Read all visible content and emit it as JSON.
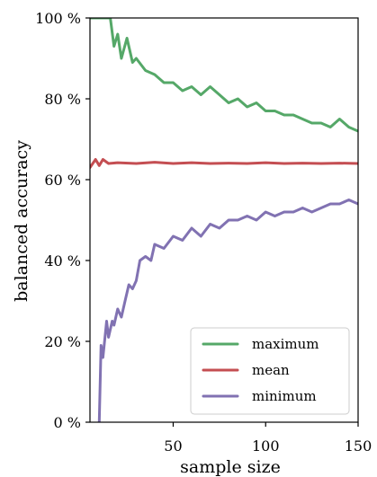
{
  "chart_data": {
    "type": "line",
    "xlabel": "sample size",
    "ylabel": "balanced accuracy",
    "xlim": [
      5,
      150
    ],
    "ylim": [
      0,
      100
    ],
    "xticks": [
      50,
      100,
      150
    ],
    "yticks": [
      0,
      20,
      40,
      60,
      80,
      100
    ],
    "ytick_labels": [
      "0 %",
      "20 %",
      "40 %",
      "60 %",
      "80 %",
      "100 %"
    ],
    "grid": false,
    "legend_position": "bottom-right",
    "series": [
      {
        "name": "maximum",
        "color": "#55a868",
        "x": [
          5,
          12,
          16,
          18,
          20,
          22,
          25,
          28,
          30,
          35,
          40,
          45,
          50,
          55,
          60,
          65,
          70,
          75,
          80,
          85,
          90,
          95,
          100,
          105,
          110,
          115,
          120,
          125,
          130,
          135,
          140,
          145,
          150
        ],
        "y": [
          100,
          100,
          100,
          93,
          96,
          90,
          95,
          89,
          90,
          87,
          86,
          84,
          84,
          82,
          83,
          81,
          83,
          81,
          79,
          80,
          78,
          79,
          77,
          77,
          76,
          76,
          75,
          74,
          74,
          73,
          75,
          73,
          72
        ]
      },
      {
        "name": "mean",
        "color": "#c44e52",
        "x": [
          5,
          8,
          10,
          12,
          15,
          20,
          30,
          40,
          50,
          60,
          70,
          80,
          90,
          100,
          110,
          120,
          130,
          140,
          150
        ],
        "y": [
          63,
          65,
          63.5,
          65,
          64,
          64.2,
          64,
          64.3,
          64,
          64.2,
          64,
          64.1,
          64,
          64.2,
          64,
          64.1,
          64,
          64.1,
          64
        ]
      },
      {
        "name": "minimum",
        "color": "#8172b2",
        "x": [
          10,
          11,
          12,
          14,
          15,
          17,
          18,
          20,
          22,
          24,
          26,
          28,
          30,
          32,
          35,
          38,
          40,
          45,
          50,
          55,
          60,
          65,
          70,
          75,
          80,
          85,
          90,
          95,
          100,
          105,
          110,
          115,
          120,
          125,
          130,
          135,
          140,
          145,
          150
        ],
        "y": [
          0,
          19,
          16,
          25,
          21,
          25,
          24,
          28,
          26,
          30,
          34,
          33,
          35,
          40,
          41,
          40,
          44,
          43,
          46,
          45,
          48,
          46,
          49,
          48,
          50,
          50,
          51,
          50,
          52,
          51,
          52,
          52,
          53,
          52,
          53,
          54,
          54,
          55,
          54
        ]
      }
    ]
  }
}
